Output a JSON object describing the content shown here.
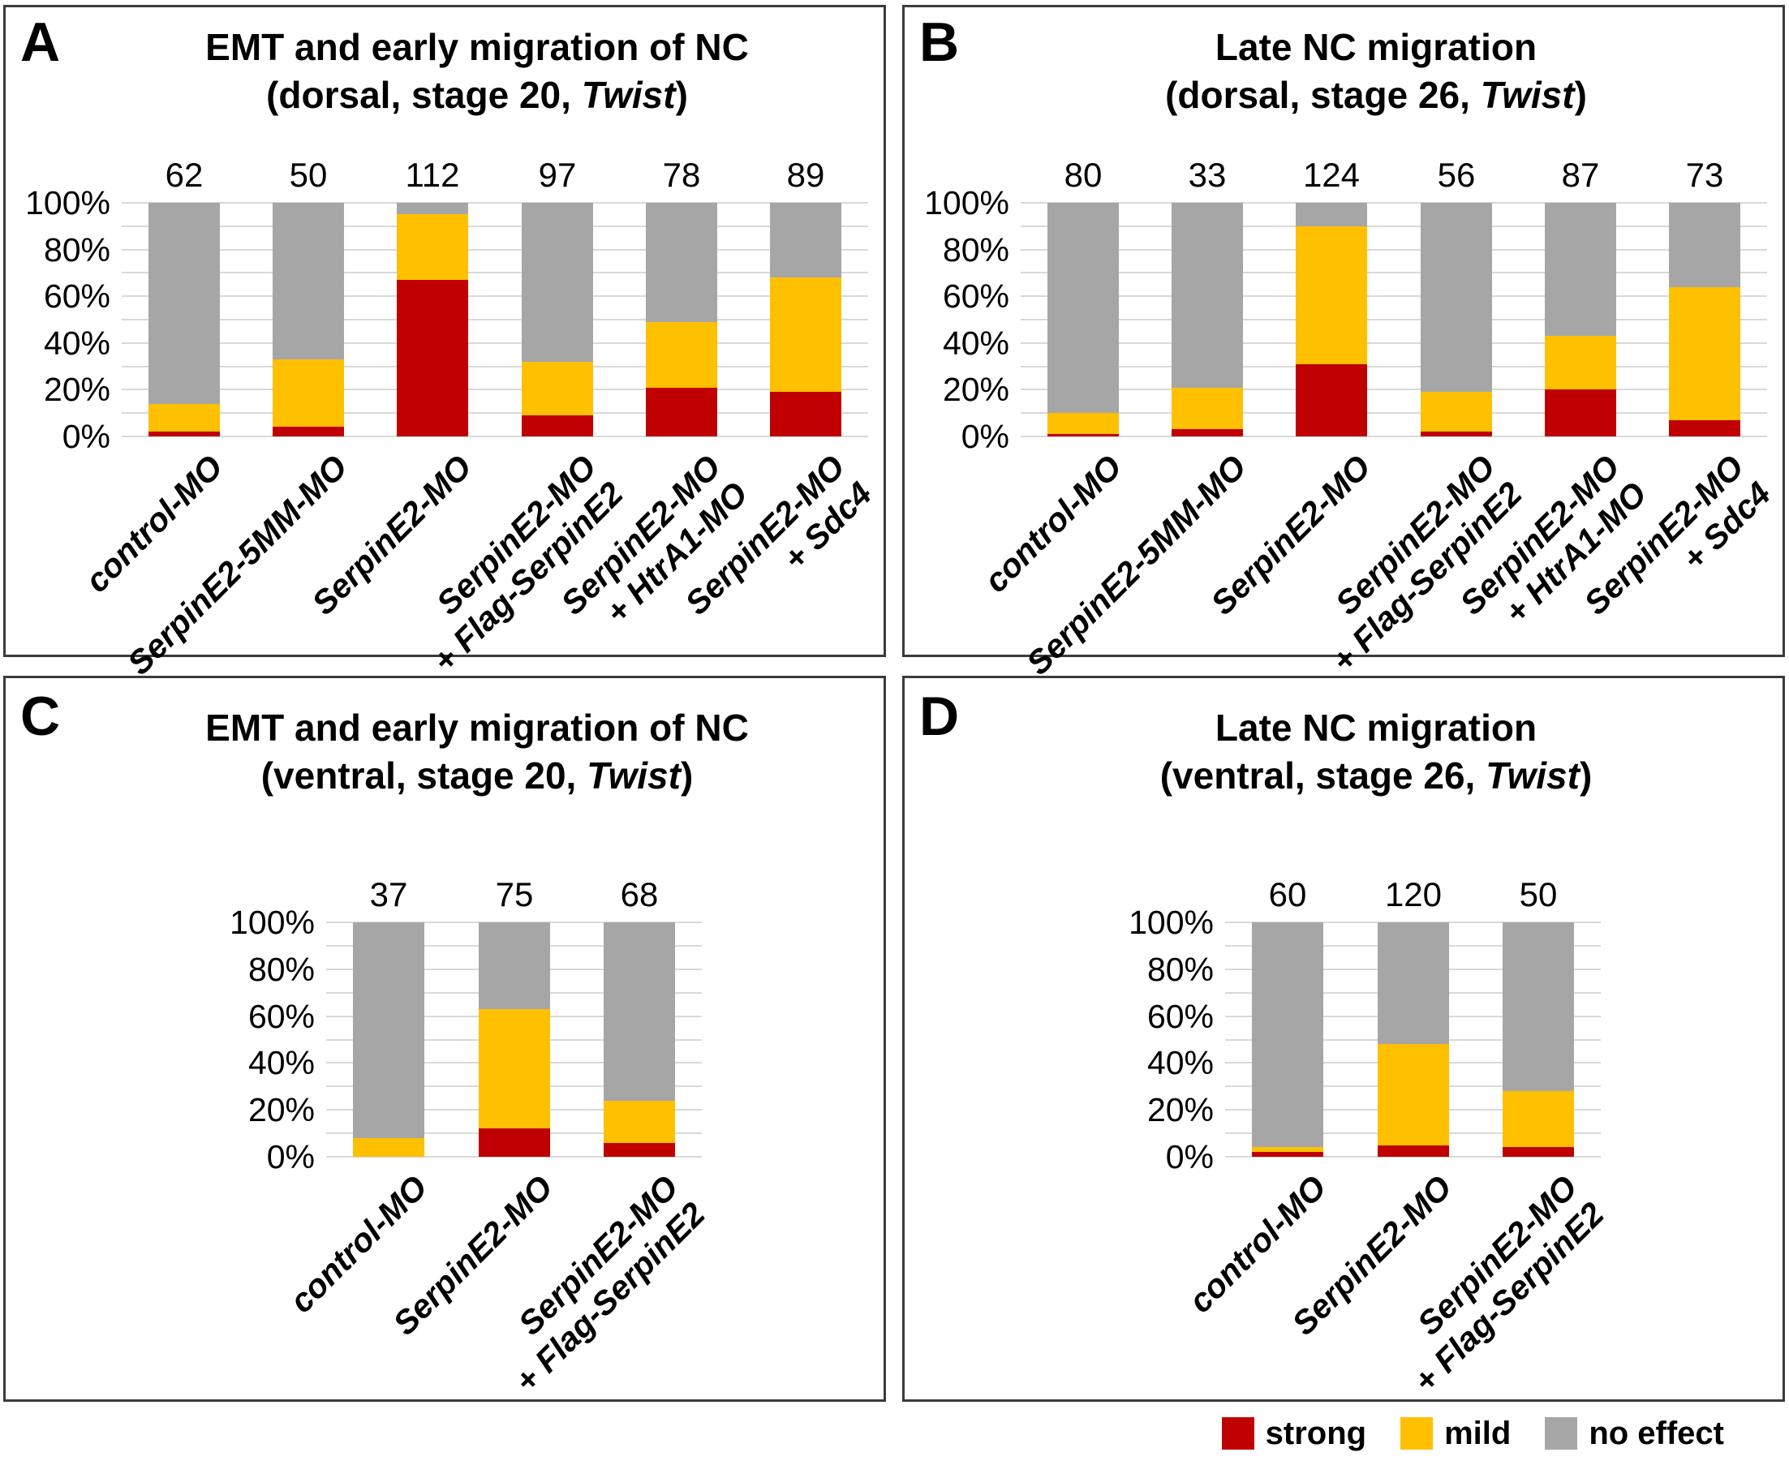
{
  "figure": {
    "colors": {
      "strong": "#C00000",
      "mild": "#FFC000",
      "no_effect": "#A6A6A6",
      "gridline": "#D9D9D9",
      "panel_border": "#3B3B3B"
    },
    "legend": {
      "items": [
        {
          "label": "strong",
          "color": "#C00000"
        },
        {
          "label": "mild",
          "color": "#FFC000"
        },
        {
          "label": "no effect",
          "color": "#A6A6A6"
        }
      ]
    }
  },
  "chart_data": [
    {
      "panel": "A",
      "type": "bar",
      "stacked": true,
      "title_line1": "EMT and early migration of NC",
      "title_line2_prefix": "(dorsal, stage 20, ",
      "title_line2_italic": "Twist",
      "title_line2_suffix": ")",
      "ylabel_ticks": [
        "100%",
        "80%",
        "60%",
        "40%",
        "20%",
        "0%"
      ],
      "ylim": [
        0,
        100
      ],
      "grid_step_percent": 10,
      "counts": [
        62,
        50,
        112,
        97,
        78,
        89
      ],
      "categories": [
        [
          "control-MO"
        ],
        [
          "SerpinE2-5MM-MO"
        ],
        [
          "SerpinE2-MO"
        ],
        [
          "SerpinE2-MO",
          "+ Flag-SerpinE2"
        ],
        [
          "SerpinE2-MO",
          "+ HtrA1-MO"
        ],
        [
          "SerpinE2-MO",
          "+ Sdc4"
        ]
      ],
      "series": [
        {
          "name": "strong",
          "values": [
            2,
            4,
            67,
            9,
            21,
            19
          ]
        },
        {
          "name": "mild",
          "values": [
            12,
            29,
            28,
            23,
            28,
            49
          ]
        },
        {
          "name": "no effect",
          "values": [
            86,
            67,
            5,
            68,
            51,
            32
          ]
        }
      ]
    },
    {
      "panel": "B",
      "type": "bar",
      "stacked": true,
      "title_line1": "Late NC migration",
      "title_line2_prefix": "(dorsal, stage 26, ",
      "title_line2_italic": "Twist",
      "title_line2_suffix": ")",
      "ylabel_ticks": [
        "100%",
        "80%",
        "60%",
        "40%",
        "20%",
        "0%"
      ],
      "ylim": [
        0,
        100
      ],
      "grid_step_percent": 10,
      "counts": [
        80,
        33,
        124,
        56,
        87,
        73
      ],
      "categories": [
        [
          "control-MO"
        ],
        [
          "SerpinE2-5MM-MO"
        ],
        [
          "SerpinE2-MO"
        ],
        [
          "SerpinE2-MO",
          "+ Flag-SerpinE2"
        ],
        [
          "SerpinE2-MO",
          "+ HtrA1-MO"
        ],
        [
          "SerpinE2-MO",
          "+ Sdc4"
        ]
      ],
      "series": [
        {
          "name": "strong",
          "values": [
            1,
            3,
            31,
            2,
            20,
            7
          ]
        },
        {
          "name": "mild",
          "values": [
            9,
            18,
            59,
            17,
            23,
            57
          ]
        },
        {
          "name": "no effect",
          "values": [
            90,
            79,
            10,
            81,
            57,
            36
          ]
        }
      ]
    },
    {
      "panel": "C",
      "type": "bar",
      "stacked": true,
      "title_line1": "EMT and early migration of NC",
      "title_line2_prefix": "(ventral, stage 20, ",
      "title_line2_italic": "Twist",
      "title_line2_suffix": ")",
      "ylabel_ticks": [
        "100%",
        "80%",
        "60%",
        "40%",
        "20%",
        "0%"
      ],
      "ylim": [
        0,
        100
      ],
      "grid_step_percent": 10,
      "counts": [
        37,
        75,
        68
      ],
      "categories": [
        [
          "control-MO"
        ],
        [
          "SerpinE2-MO"
        ],
        [
          "SerpinE2-MO",
          "+ Flag-SerpinE2"
        ]
      ],
      "series": [
        {
          "name": "strong",
          "values": [
            0,
            12,
            6
          ]
        },
        {
          "name": "mild",
          "values": [
            8,
            51,
            18
          ]
        },
        {
          "name": "no effect",
          "values": [
            92,
            37,
            76
          ]
        }
      ]
    },
    {
      "panel": "D",
      "type": "bar",
      "stacked": true,
      "title_line1": "Late NC migration",
      "title_line2_prefix": "(ventral, stage 26, ",
      "title_line2_italic": "Twist",
      "title_line2_suffix": ")",
      "ylabel_ticks": [
        "100%",
        "80%",
        "60%",
        "40%",
        "20%",
        "0%"
      ],
      "ylim": [
        0,
        100
      ],
      "grid_step_percent": 10,
      "counts": [
        60,
        120,
        50
      ],
      "categories": [
        [
          "control-MO"
        ],
        [
          "SerpinE2-MO"
        ],
        [
          "SerpinE2-MO",
          "+ Flag-SerpinE2"
        ]
      ],
      "series": [
        {
          "name": "strong",
          "values": [
            2,
            5,
            4
          ]
        },
        {
          "name": "mild",
          "values": [
            2,
            43,
            24
          ]
        },
        {
          "name": "no effect",
          "values": [
            96,
            52,
            72
          ]
        }
      ]
    }
  ]
}
